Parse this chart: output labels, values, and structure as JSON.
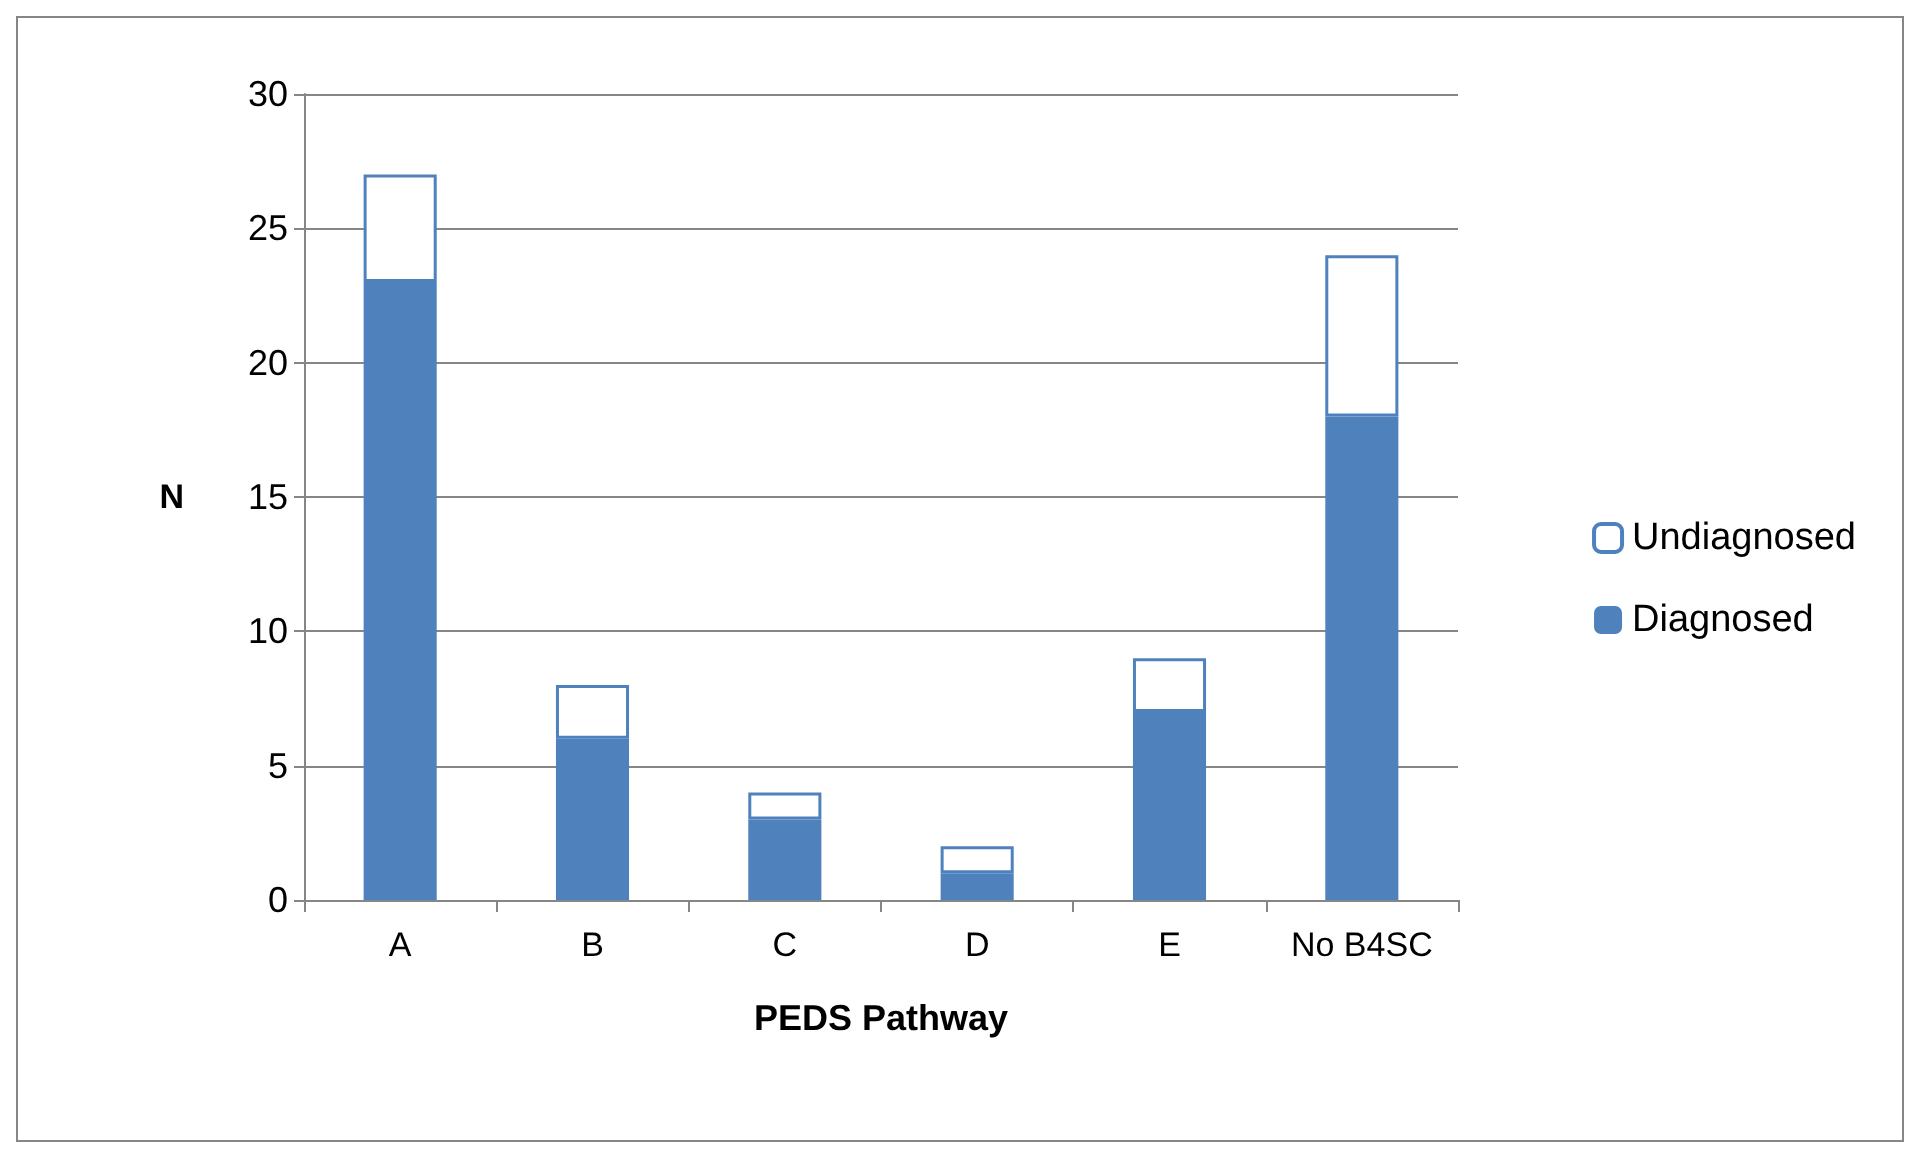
{
  "chart_data": {
    "type": "bar",
    "stacked": true,
    "xlabel": "PEDS Pathway",
    "ylabel": "N",
    "categories": [
      "A",
      "B",
      "C",
      "D",
      "E",
      "No B4SC"
    ],
    "series": [
      {
        "name": "Diagnosed",
        "color": "#4f81bd",
        "values": [
          23,
          6,
          3,
          1,
          7,
          18
        ]
      },
      {
        "name": "Undiagnosed",
        "color": "#ffffff",
        "values": [
          4,
          2,
          1,
          1,
          2,
          6
        ]
      }
    ],
    "ylim": [
      0,
      30
    ],
    "yticks": [
      0,
      5,
      10,
      15,
      20,
      25,
      30
    ],
    "grid": "y",
    "legend": "right"
  }
}
